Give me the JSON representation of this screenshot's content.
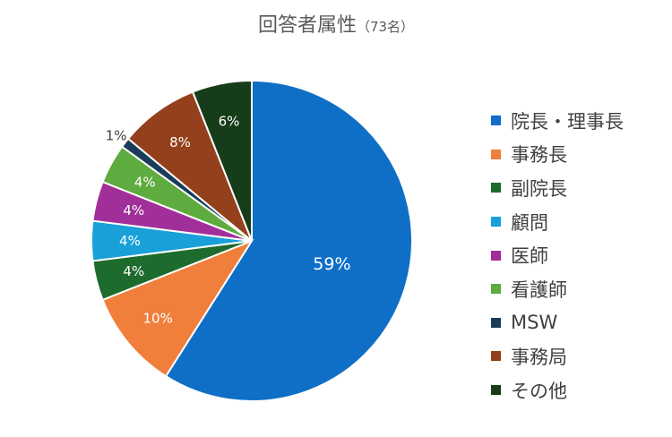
{
  "title": "回答者属性",
  "subtitle": "（73名）",
  "chart_data": {
    "type": "pie",
    "title": "回答者属性（73名）",
    "categories": [
      "院長・理事長",
      "事務長",
      "副院長",
      "顧問",
      "医師",
      "看護師",
      "MSW",
      "事務局",
      "その他"
    ],
    "values": [
      59,
      10,
      4,
      4,
      4,
      4,
      1,
      8,
      6
    ],
    "labels": [
      "59%",
      "10%",
      "4%",
      "4%",
      "4%",
      "4%",
      "1%",
      "8%",
      "6%"
    ],
    "colors": [
      "#0f6fc6",
      "#f07f3c",
      "#1e6b2e",
      "#19a0d8",
      "#a12f99",
      "#5eab3f",
      "#1a3c5a",
      "#94401c",
      "#173c1a"
    ],
    "label_colors": [
      "#ffffff",
      "#ffffff",
      "#ffffff",
      "#ffffff",
      "#ffffff",
      "#ffffff",
      "#404040",
      "#ffffff",
      "#ffffff"
    ],
    "legend_position": "right",
    "start_angle": "12 o'clock",
    "direction": "clockwise"
  }
}
